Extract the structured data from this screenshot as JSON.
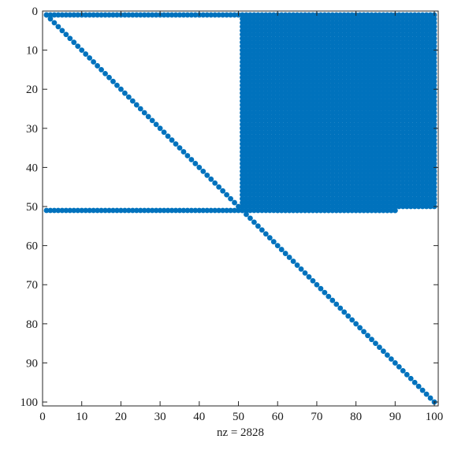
{
  "chart_data": {
    "type": "scatter",
    "subtype": "sparsity-pattern",
    "xlabel": "nz = 2828",
    "ylabel": "",
    "title": "",
    "xlim": [
      0,
      101
    ],
    "ylim": [
      0,
      101
    ],
    "y_axis_reversed": true,
    "x_ticks": [
      0,
      10,
      20,
      30,
      40,
      50,
      60,
      70,
      80,
      90,
      100
    ],
    "y_ticks": [
      0,
      10,
      20,
      30,
      40,
      50,
      60,
      70,
      80,
      90,
      100
    ],
    "grid": false,
    "marker_color": "#0072bd",
    "nonzero_count": 2828,
    "matrix_size": [
      101,
      101
    ],
    "structure": [
      {
        "name": "diagonal",
        "rows": [
          1,
          100
        ],
        "cols": [
          1,
          100
        ],
        "shape": "diagonal"
      },
      {
        "name": "row-1-band",
        "rows": [
          1,
          1
        ],
        "cols": [
          1,
          50
        ],
        "shape": "row"
      },
      {
        "name": "row-51-band",
        "rows": [
          51,
          51
        ],
        "cols": [
          1,
          90
        ],
        "shape": "row"
      },
      {
        "name": "dense-block",
        "rows": [
          1,
          50
        ],
        "cols": [
          51,
          100
        ],
        "shape": "block"
      },
      {
        "name": "dense-block-tail",
        "rows": [
          51,
          51
        ],
        "cols": [
          60,
          90
        ],
        "shape": "block"
      }
    ]
  }
}
